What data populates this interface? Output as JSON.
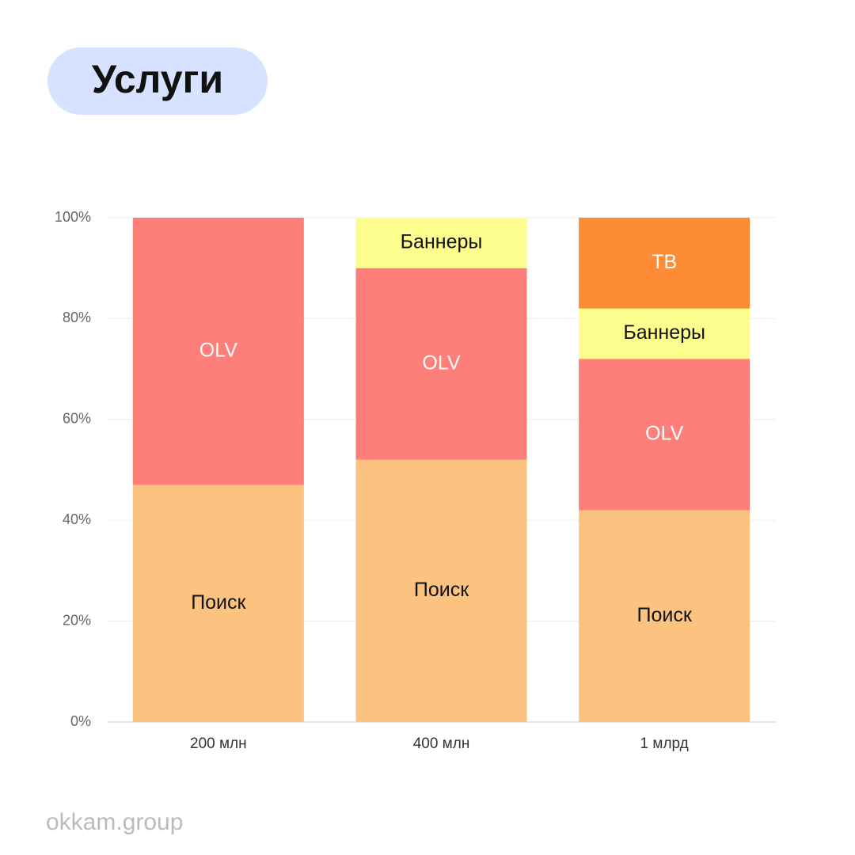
{
  "chart_data": {
    "type": "stacked_bar",
    "title": "Услуги",
    "footer": "okkam.group",
    "categories": [
      "200 млн",
      "400 млн",
      "1 млрд"
    ],
    "series": [
      {
        "name": "Поиск",
        "color": "#fbc280",
        "values": [
          47,
          52,
          42
        ]
      },
      {
        "name": "OLV",
        "color": "#fe7f7a",
        "values": [
          53,
          38,
          30
        ]
      },
      {
        "name": "Баннеры",
        "color": "#fcfd8d",
        "values": [
          null,
          10,
          10
        ]
      },
      {
        "name": "ТВ",
        "color": "#fd8c35",
        "values": [
          null,
          null,
          18
        ]
      }
    ],
    "ylim": [
      0,
      100
    ],
    "yticks": [
      {
        "value": 0,
        "label": "0%"
      },
      {
        "value": 20,
        "label": "20%"
      },
      {
        "value": 40,
        "label": "40%"
      },
      {
        "value": 60,
        "label": "60%"
      },
      {
        "value": 80,
        "label": "80%"
      },
      {
        "value": 100,
        "label": "100%"
      }
    ],
    "grid": true
  }
}
